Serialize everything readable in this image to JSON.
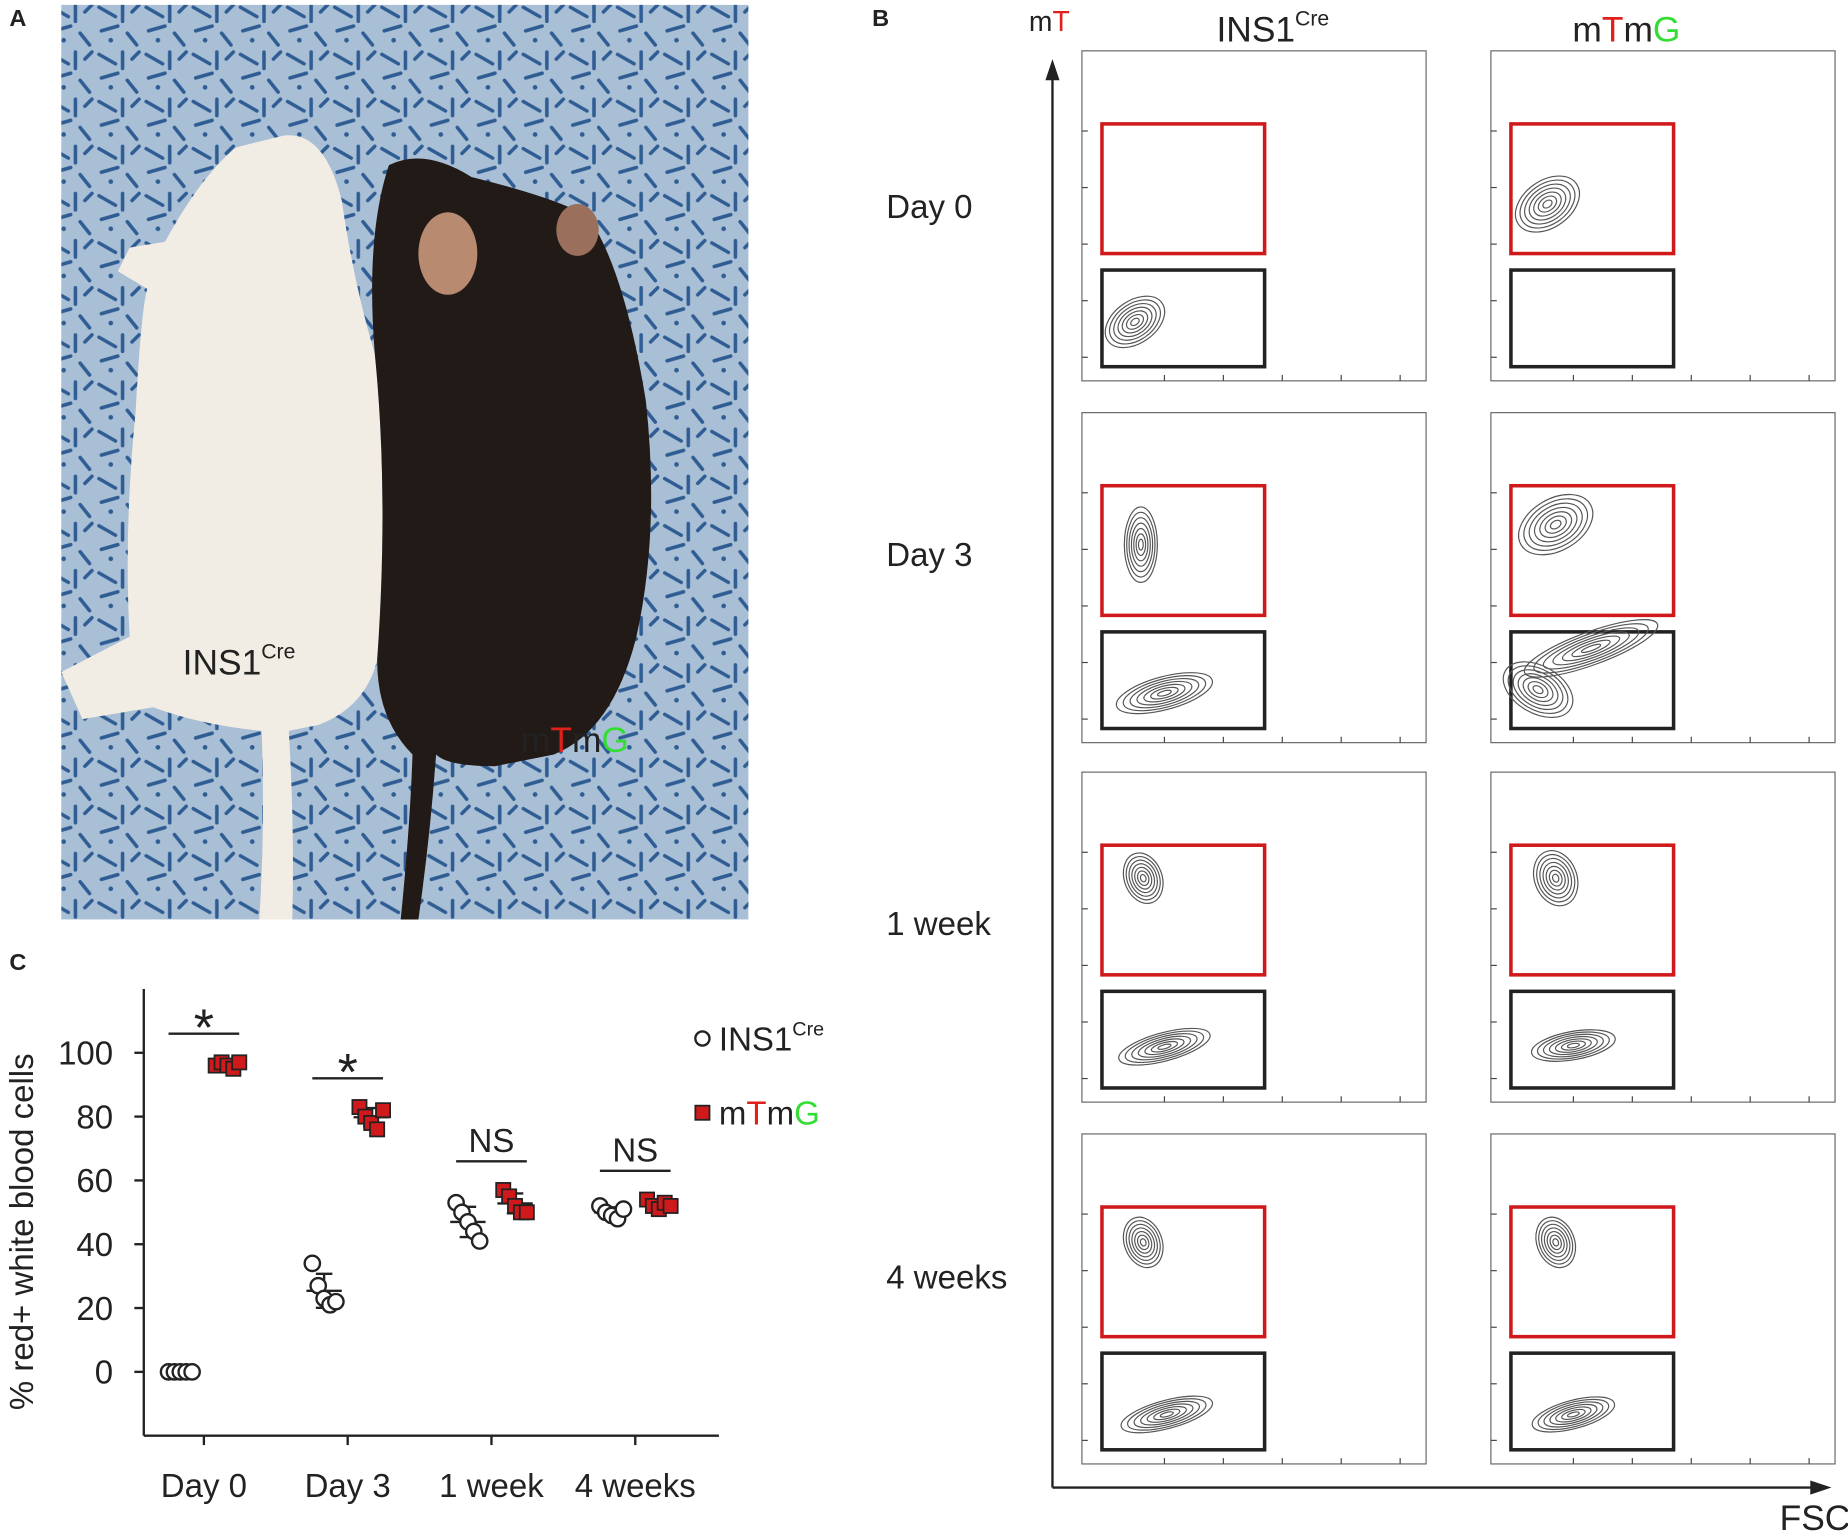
{
  "panel_a": {
    "label": "A",
    "labels": [
      {
        "parts": [
          {
            "text": "INS1",
            "color": "#222"
          },
          {
            "text": "Cre",
            "color": "#222",
            "sup": true
          }
        ]
      },
      {
        "parts": [
          {
            "text": "m",
            "color": "#222"
          },
          {
            "text": "T",
            "color": "#e0201b"
          },
          {
            "text": "m",
            "color": "#222"
          },
          {
            "text": "G",
            "color": "#33dd33"
          }
        ]
      }
    ]
  },
  "panel_b": {
    "label": "B",
    "y_axis": {
      "parts": [
        {
          "text": "m",
          "color": "#222"
        },
        {
          "text": "T",
          "color": "#e0201b"
        }
      ]
    },
    "x_axis": "FSC",
    "columns": [
      {
        "parts": [
          {
            "text": "INS1",
            "color": "#222"
          },
          {
            "text": "Cre",
            "color": "#222",
            "sup": true
          }
        ]
      },
      {
        "parts": [
          {
            "text": "m",
            "color": "#222"
          },
          {
            "text": "T",
            "color": "#e0201b"
          },
          {
            "text": "m",
            "color": "#222"
          },
          {
            "text": "G",
            "color": "#33dd33"
          }
        ]
      }
    ],
    "rows": [
      "Day 0",
      "Day 3",
      "1 week",
      "4 weeks"
    ]
  },
  "panel_c": {
    "label": "C",
    "chart_data": {
      "type": "scatter",
      "y_label": "% red+ white blood cells",
      "categories": [
        "Day 0",
        "Day 3",
        "1 week",
        "4 weeks"
      ],
      "series": [
        {
          "name": [
            {
              "text": "INS1",
              "color": "#222"
            },
            {
              "text": "Cre",
              "color": "#222",
              "sup": true
            }
          ],
          "marker": "circle",
          "color": "#ffffff",
          "values": [
            [
              0,
              0,
              0,
              0,
              0
            ],
            [
              34,
              27,
              23,
              21,
              22
            ],
            [
              53,
              50,
              47,
              44,
              41
            ],
            [
              52,
              50,
              49,
              48,
              51
            ]
          ]
        },
        {
          "name": [
            {
              "text": "m",
              "color": "#222"
            },
            {
              "text": "T",
              "color": "#e0201b"
            },
            {
              "text": "m",
              "color": "#222"
            },
            {
              "text": "G",
              "color": "#33dd33"
            }
          ],
          "marker": "square",
          "color": "#d0191b",
          "values": [
            [
              96,
              97,
              96,
              95,
              97
            ],
            [
              83,
              80,
              78,
              76,
              82
            ],
            [
              57,
              55,
              52,
              50,
              50
            ],
            [
              54,
              52,
              51,
              53,
              52
            ]
          ]
        }
      ],
      "annotations": [
        "*",
        "*",
        "NS",
        "NS"
      ],
      "ylim": [
        -20,
        120
      ],
      "yticks": [
        0,
        20,
        40,
        60,
        80,
        100
      ]
    }
  }
}
